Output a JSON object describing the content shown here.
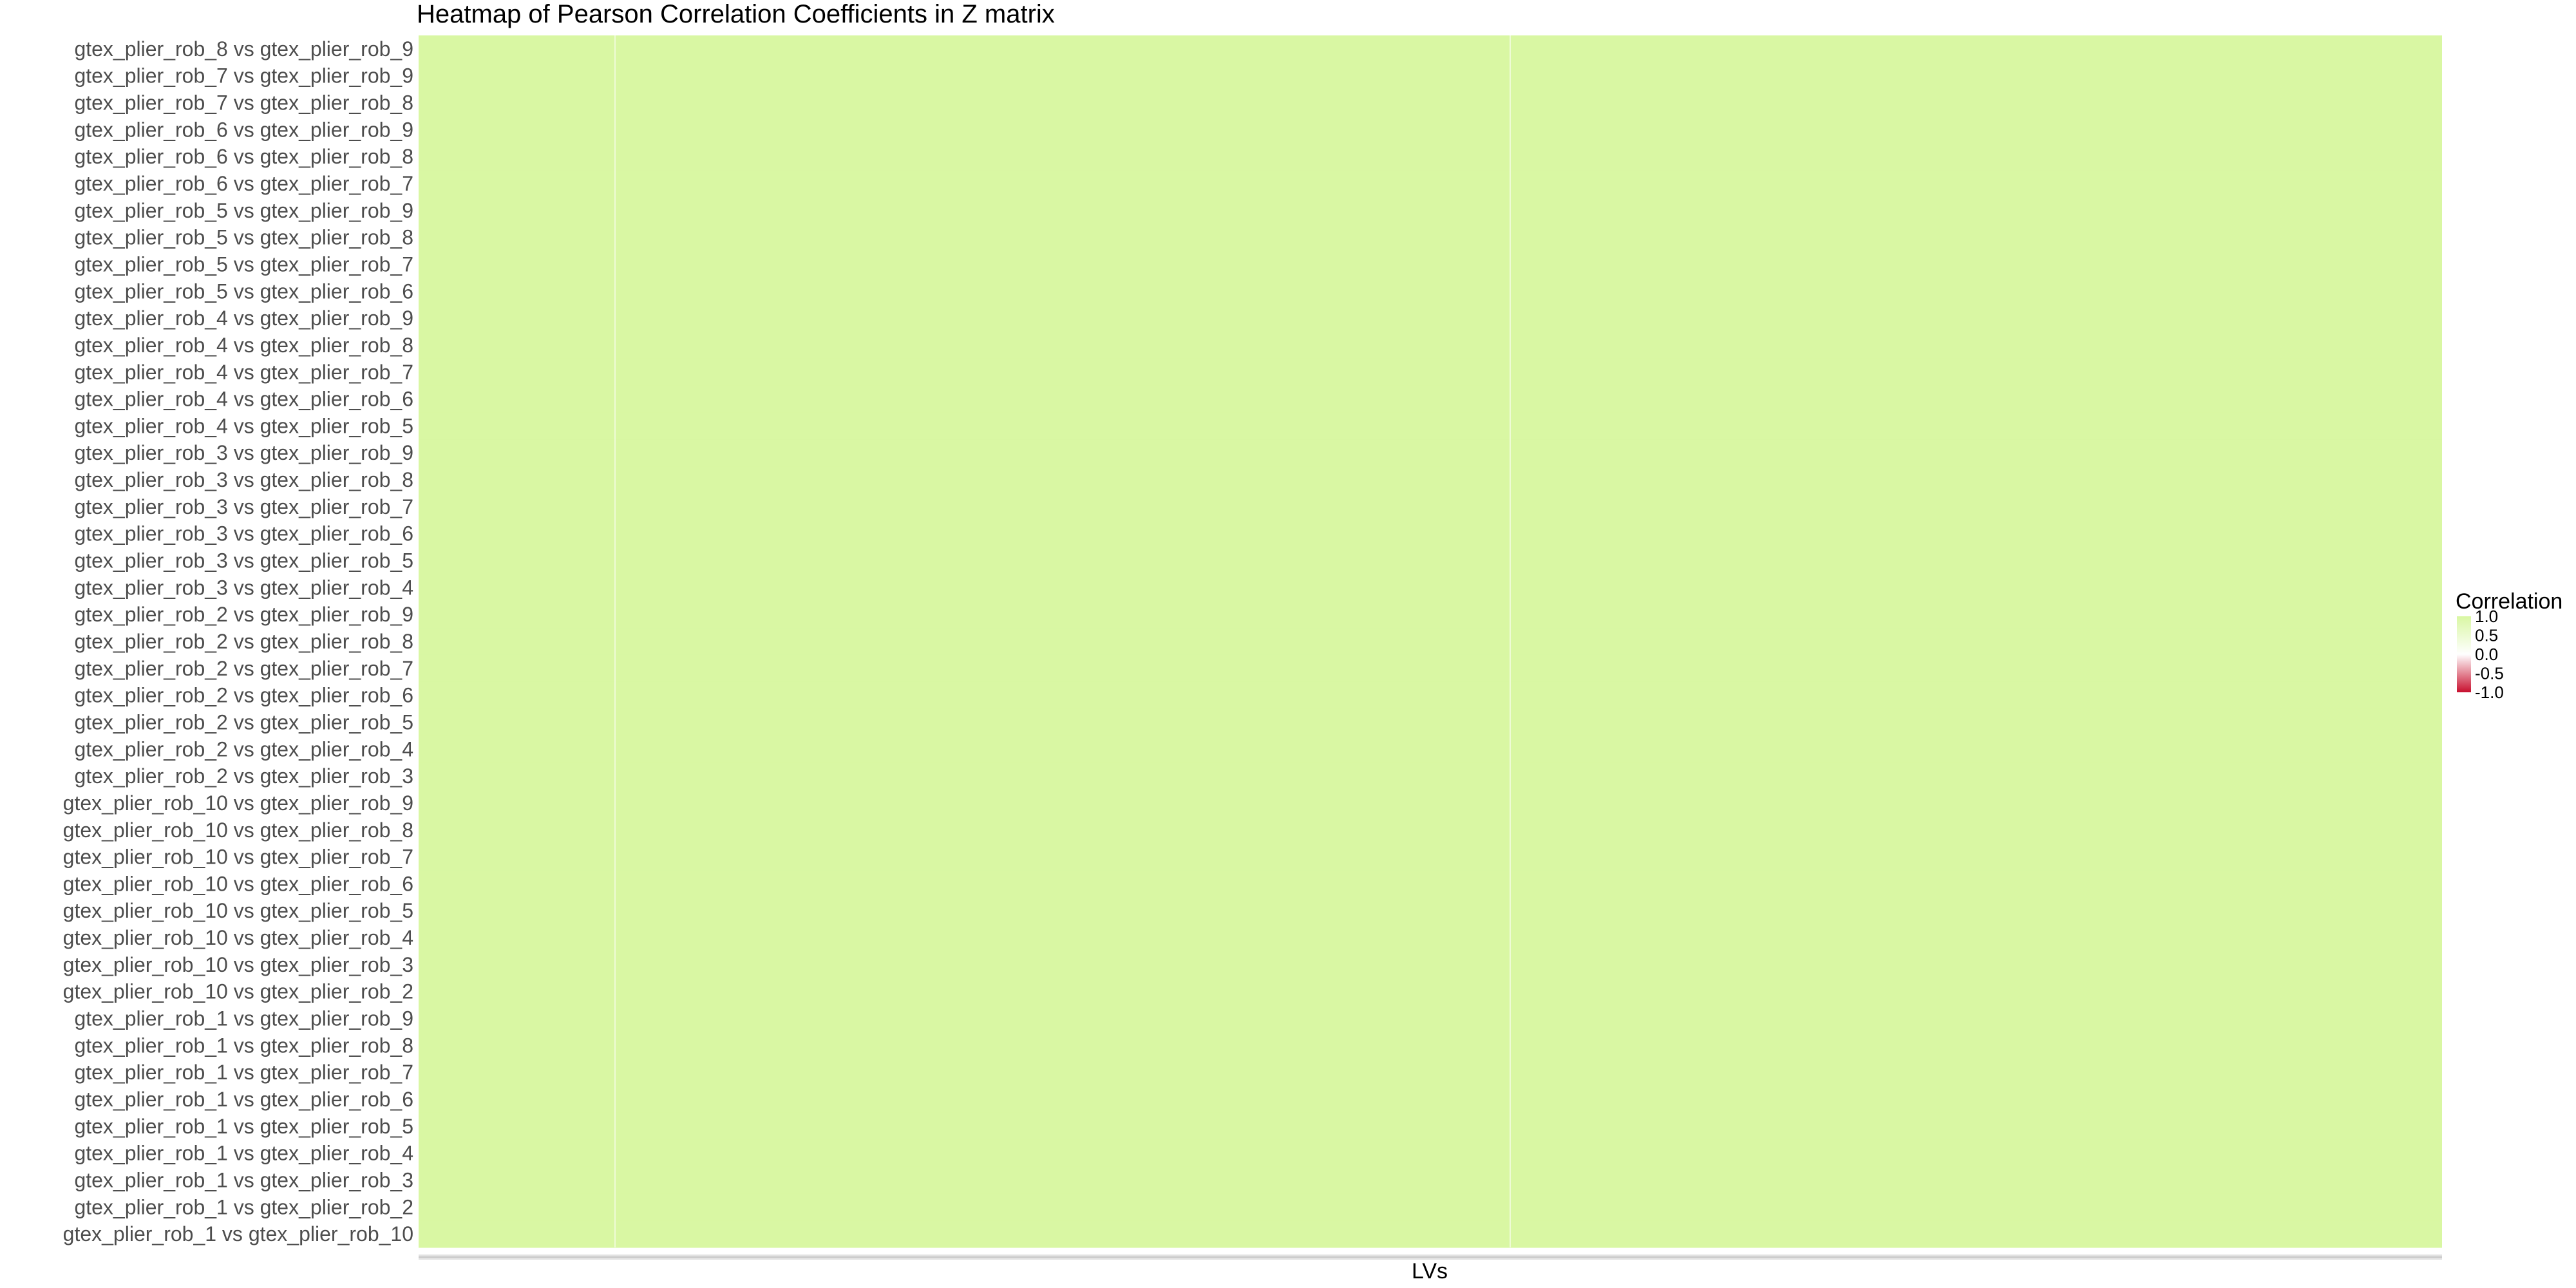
{
  "chart_data": {
    "type": "heatmap",
    "title": "Heatmap of Pearson Correlation Coefficients in Z matrix",
    "xlabel": "LVs",
    "ylabel": "",
    "rows": [
      "gtex_plier_rob_8 vs gtex_plier_rob_9",
      "gtex_plier_rob_7 vs gtex_plier_rob_9",
      "gtex_plier_rob_7 vs gtex_plier_rob_8",
      "gtex_plier_rob_6 vs gtex_plier_rob_9",
      "gtex_plier_rob_6 vs gtex_plier_rob_8",
      "gtex_plier_rob_6 vs gtex_plier_rob_7",
      "gtex_plier_rob_5 vs gtex_plier_rob_9",
      "gtex_plier_rob_5 vs gtex_plier_rob_8",
      "gtex_plier_rob_5 vs gtex_plier_rob_7",
      "gtex_plier_rob_5 vs gtex_plier_rob_6",
      "gtex_plier_rob_4 vs gtex_plier_rob_9",
      "gtex_plier_rob_4 vs gtex_plier_rob_8",
      "gtex_plier_rob_4 vs gtex_plier_rob_7",
      "gtex_plier_rob_4 vs gtex_plier_rob_6",
      "gtex_plier_rob_4 vs gtex_plier_rob_5",
      "gtex_plier_rob_3 vs gtex_plier_rob_9",
      "gtex_plier_rob_3 vs gtex_plier_rob_8",
      "gtex_plier_rob_3 vs gtex_plier_rob_7",
      "gtex_plier_rob_3 vs gtex_plier_rob_6",
      "gtex_plier_rob_3 vs gtex_plier_rob_5",
      "gtex_plier_rob_3 vs gtex_plier_rob_4",
      "gtex_plier_rob_2 vs gtex_plier_rob_9",
      "gtex_plier_rob_2 vs gtex_plier_rob_8",
      "gtex_plier_rob_2 vs gtex_plier_rob_7",
      "gtex_plier_rob_2 vs gtex_plier_rob_6",
      "gtex_plier_rob_2 vs gtex_plier_rob_5",
      "gtex_plier_rob_2 vs gtex_plier_rob_4",
      "gtex_plier_rob_2 vs gtex_plier_rob_3",
      "gtex_plier_rob_10 vs gtex_plier_rob_9",
      "gtex_plier_rob_10 vs gtex_plier_rob_8",
      "gtex_plier_rob_10 vs gtex_plier_rob_7",
      "gtex_plier_rob_10 vs gtex_plier_rob_6",
      "gtex_plier_rob_10 vs gtex_plier_rob_5",
      "gtex_plier_rob_10 vs gtex_plier_rob_4",
      "gtex_plier_rob_10 vs gtex_plier_rob_3",
      "gtex_plier_rob_10 vs gtex_plier_rob_2",
      "gtex_plier_rob_1 vs gtex_plier_rob_9",
      "gtex_plier_rob_1 vs gtex_plier_rob_8",
      "gtex_plier_rob_1 vs gtex_plier_rob_7",
      "gtex_plier_rob_1 vs gtex_plier_rob_6",
      "gtex_plier_rob_1 vs gtex_plier_rob_5",
      "gtex_plier_rob_1 vs gtex_plier_rob_4",
      "gtex_plier_rob_1 vs gtex_plier_rob_3",
      "gtex_plier_rob_1 vs gtex_plier_rob_2",
      "gtex_plier_rob_1 vs gtex_plier_rob_10"
    ],
    "cell_value": 1.0,
    "value_range": [
      -1.0,
      1.0
    ],
    "legend": {
      "title": "Correlation",
      "position": "right",
      "breaks": [
        "1.0",
        "0.5",
        "0.0",
        "-0.5",
        "-1.0"
      ],
      "colors": {
        "high": "#d9f7a3",
        "mid": "#ffffff",
        "low": "#c8102e"
      }
    },
    "grid": true
  }
}
